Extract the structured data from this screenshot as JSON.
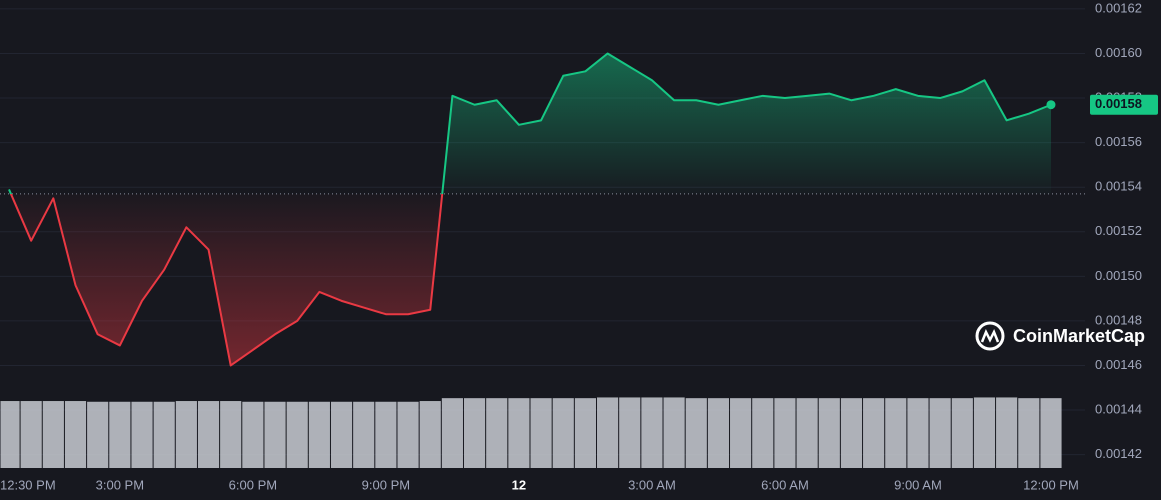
{
  "chart_data": {
    "type": "line",
    "categories": [
      "12:30 PM",
      null,
      null,
      null,
      null,
      "3:00 PM",
      null,
      null,
      null,
      null,
      null,
      "6:00 PM",
      null,
      null,
      null,
      null,
      null,
      "9:00 PM",
      null,
      null,
      null,
      null,
      null,
      "12",
      null,
      null,
      null,
      null,
      null,
      "3:00 AM",
      null,
      null,
      null,
      null,
      null,
      "6:00 AM",
      null,
      null,
      null,
      null,
      null,
      "9:00 AM",
      null,
      null,
      null,
      null,
      null,
      "12:00 PM"
    ],
    "values": [
      0.001539,
      0.001516,
      0.001535,
      0.001496,
      0.001474,
      0.001469,
      0.001489,
      0.001503,
      0.001522,
      0.001512,
      0.00146,
      0.001467,
      0.001474,
      0.00148,
      0.001493,
      0.001489,
      0.001486,
      0.001483,
      0.001483,
      0.001485,
      0.001581,
      0.001577,
      0.001579,
      0.001568,
      0.00157,
      0.00159,
      0.001592,
      0.0016,
      0.001594,
      0.001588,
      0.001579,
      0.001579,
      0.001577,
      0.001579,
      0.001581,
      0.00158,
      0.001581,
      0.001582,
      0.001579,
      0.001581,
      0.001584,
      0.001581,
      0.00158,
      0.001583,
      0.001588,
      0.00157,
      0.001573,
      0.001577
    ],
    "baseline": 0.001537,
    "up_color": "#16c784",
    "down_color": "#ea3943",
    "last_price_label": "0.00158",
    "volume": [
      93,
      93,
      93,
      93,
      92,
      92,
      92,
      92,
      93,
      93,
      93,
      92,
      92,
      92,
      92,
      92,
      92,
      92,
      92,
      93,
      97,
      97,
      97,
      97,
      97,
      97,
      97,
      98,
      98,
      98,
      98,
      97,
      97,
      97,
      97,
      97,
      97,
      97,
      97,
      97,
      97,
      97,
      97,
      97,
      98,
      98,
      97,
      97
    ],
    "volume_lim": [
      0,
      100
    ],
    "ylim": [
      0.001414,
      0.001624
    ],
    "yticks": [
      0.00142,
      0.00144,
      0.00146,
      0.00148,
      {
        "value": 0.0015,
        "label": "0.00150"
      },
      0.00152,
      0.00154,
      0.00156,
      0.00158,
      {
        "value": 0.0016,
        "label": "0.00160"
      },
      0.00162
    ],
    "grid": true,
    "watermark": "CoinMarketCap"
  }
}
